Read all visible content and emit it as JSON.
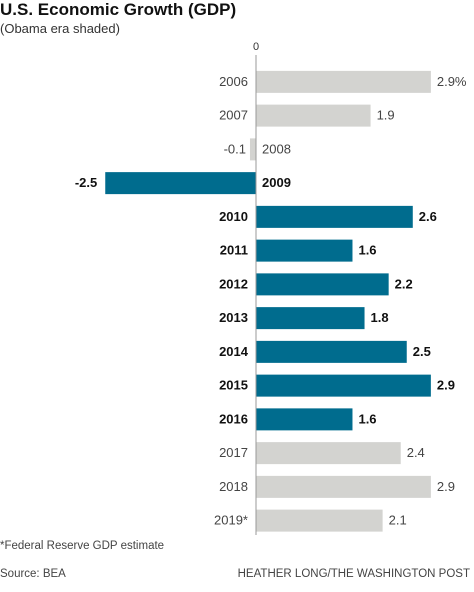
{
  "header": {
    "title": "U.S. Economic Growth (GDP)",
    "subtitle": "(Obama era shaded)"
  },
  "chart_data": {
    "type": "bar",
    "orientation": "horizontal",
    "title": "U.S. Economic Growth (GDP)",
    "subtitle": "(Obama era shaded)",
    "zero_label": "0",
    "categories": [
      "2006",
      "2007",
      "2008",
      "2009",
      "2010",
      "2011",
      "2012",
      "2013",
      "2014",
      "2015",
      "2016",
      "2017",
      "2018",
      "2019*"
    ],
    "value_labels": [
      "2.9%",
      "1.9",
      "-0.1",
      "-2.5",
      "2.6",
      "1.6",
      "2.2",
      "1.8",
      "2.5",
      "2.9",
      "1.6",
      "2.4",
      "2.9",
      "2.1"
    ],
    "values": [
      2.9,
      1.9,
      -0.1,
      -2.5,
      2.6,
      1.6,
      2.2,
      1.8,
      2.5,
      2.9,
      1.6,
      2.4,
      2.9,
      2.1
    ],
    "highlighted": [
      false,
      false,
      false,
      true,
      true,
      true,
      true,
      true,
      true,
      true,
      true,
      false,
      false,
      false
    ],
    "colors": {
      "highlight": "#006c8e",
      "normal": "#d3d3d0",
      "axis": "#999999"
    },
    "grid": false,
    "legend": "none"
  },
  "footer": {
    "footnote": "*Federal Reserve GDP estimate",
    "source": "Source: BEA",
    "credit": "HEATHER LONG/THE WASHINGTON POST"
  }
}
